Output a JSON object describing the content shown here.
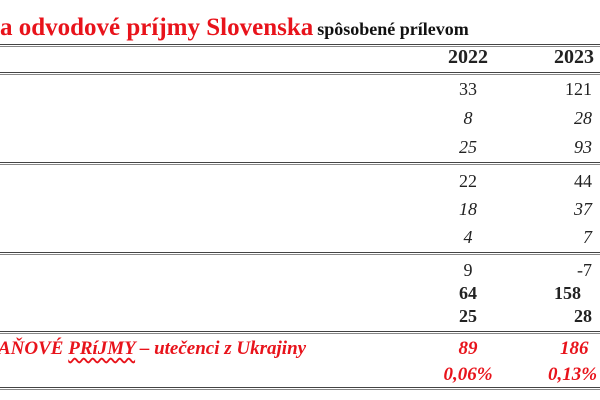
{
  "title": {
    "red_part": "a odvodové príjmy Slovenska",
    "black_part": "spôsobené prílevom"
  },
  "table": {
    "columns": [
      "2022",
      "2023"
    ],
    "rows": [
      {
        "v2022": "33",
        "v2023": "121",
        "style": "normal"
      },
      {
        "v2022": "8",
        "v2023": "28",
        "style": "italic"
      },
      {
        "v2022": "25",
        "v2023": "93",
        "style": "italic"
      },
      {
        "v2022": "22",
        "v2023": "44",
        "style": "normal"
      },
      {
        "v2022": "18",
        "v2023": "37",
        "style": "italic"
      },
      {
        "v2022": "4",
        "v2023": "7",
        "style": "italic"
      },
      {
        "v2022": "9",
        "v2023": "-7",
        "style": "normal"
      },
      {
        "v2022": "64",
        "v2023": "158",
        "style": "bold"
      },
      {
        "v2022": "25",
        "v2023": "28",
        "style": "bold"
      }
    ],
    "total": {
      "label_prefix": "AŇOVÉ ",
      "label_underlined": "PRíJMY",
      "label_suffix": " – utečenci z Ukrajiny",
      "v2022": "89",
      "v2023": "186",
      "pct2022": "0,06%",
      "pct2023": "0,13%"
    }
  },
  "colors": {
    "accent_red": "#e8131b"
  }
}
